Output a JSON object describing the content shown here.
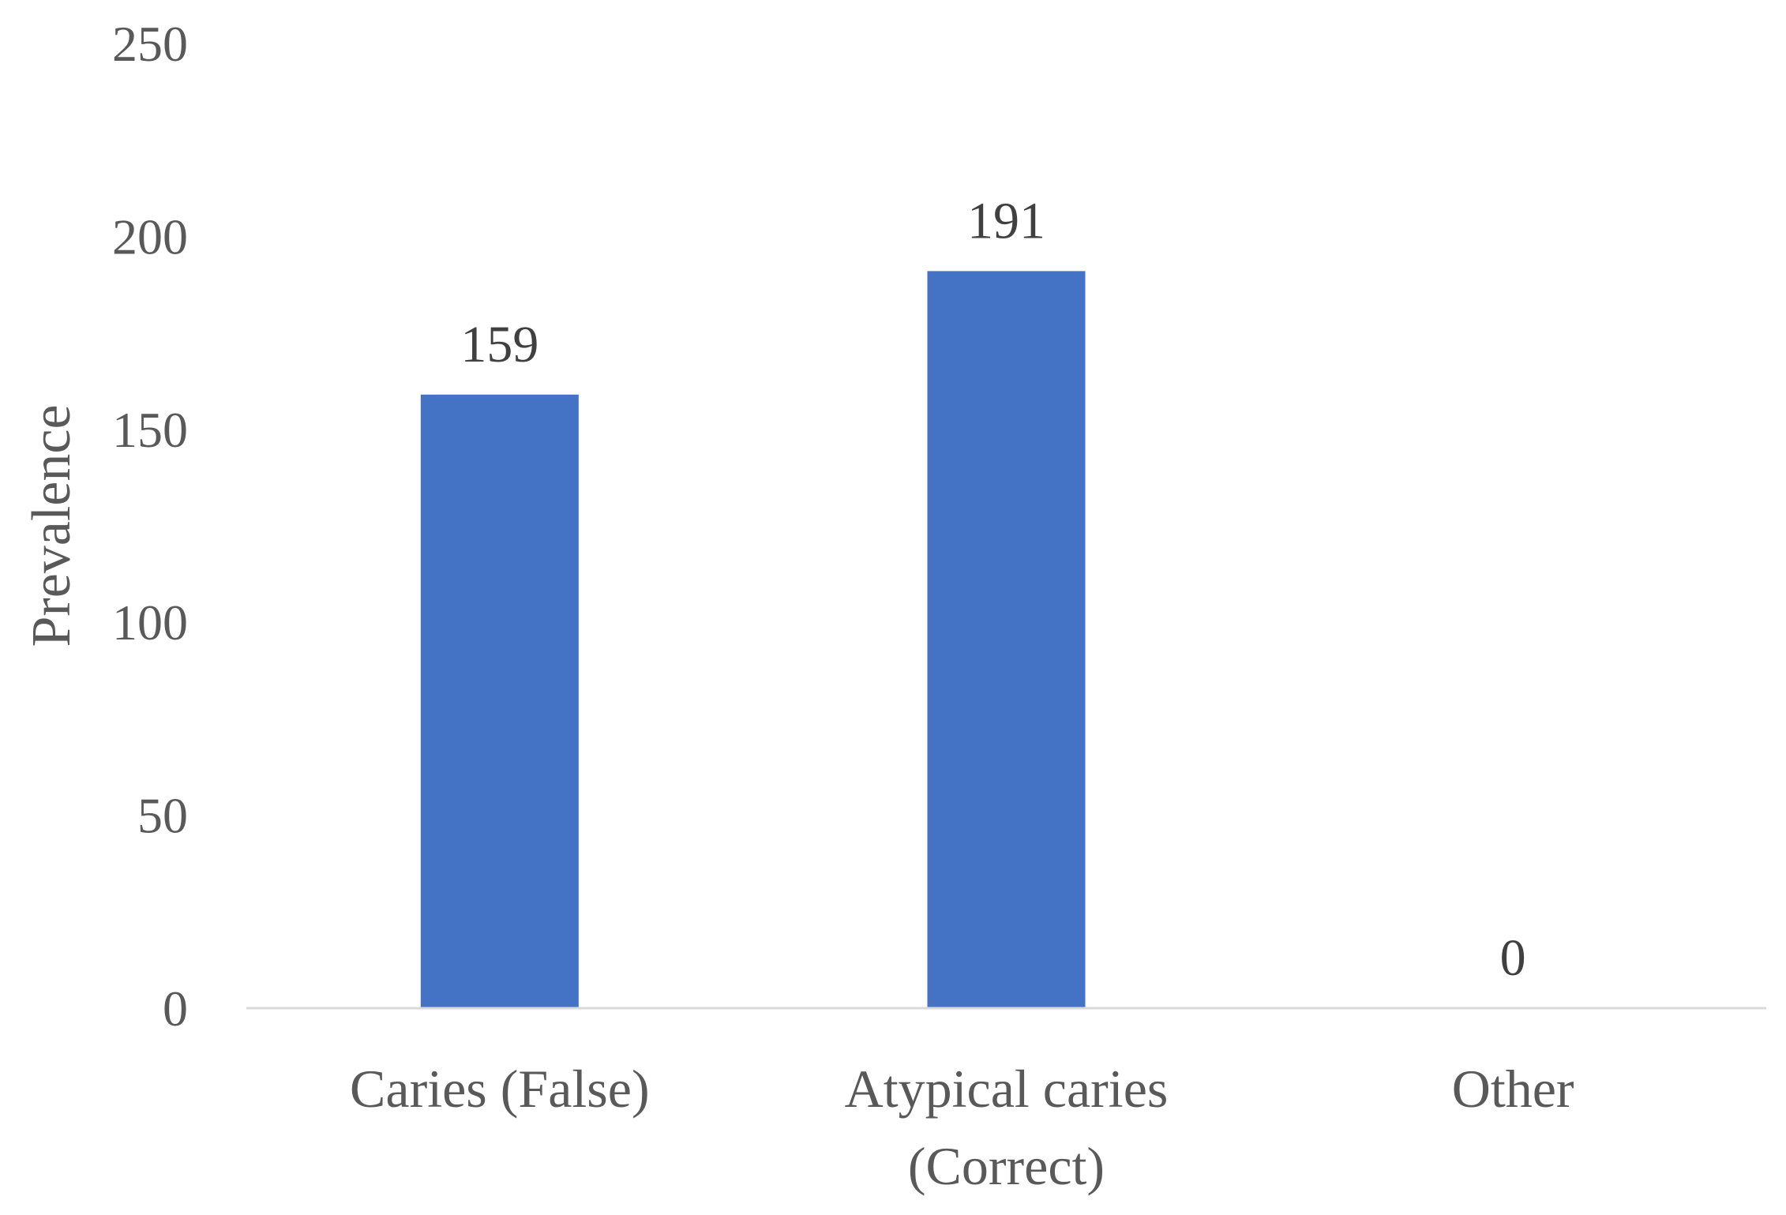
{
  "chart_data": {
    "type": "bar",
    "title": "",
    "xlabel": "",
    "ylabel": "Prevalence",
    "categories": [
      [
        "Caries (False)"
      ],
      [
        "Atypical caries",
        "(Correct)"
      ],
      [
        "Other"
      ]
    ],
    "values": [
      159,
      191,
      0
    ],
    "data_labels": [
      "159",
      "191",
      "0"
    ],
    "ylim": [
      0,
      250
    ],
    "yticks": [
      0,
      50,
      100,
      150,
      200,
      250
    ],
    "grid": false,
    "legend": "none",
    "bar_color": "#4472C4",
    "axis_color": "#D9D9D9"
  }
}
